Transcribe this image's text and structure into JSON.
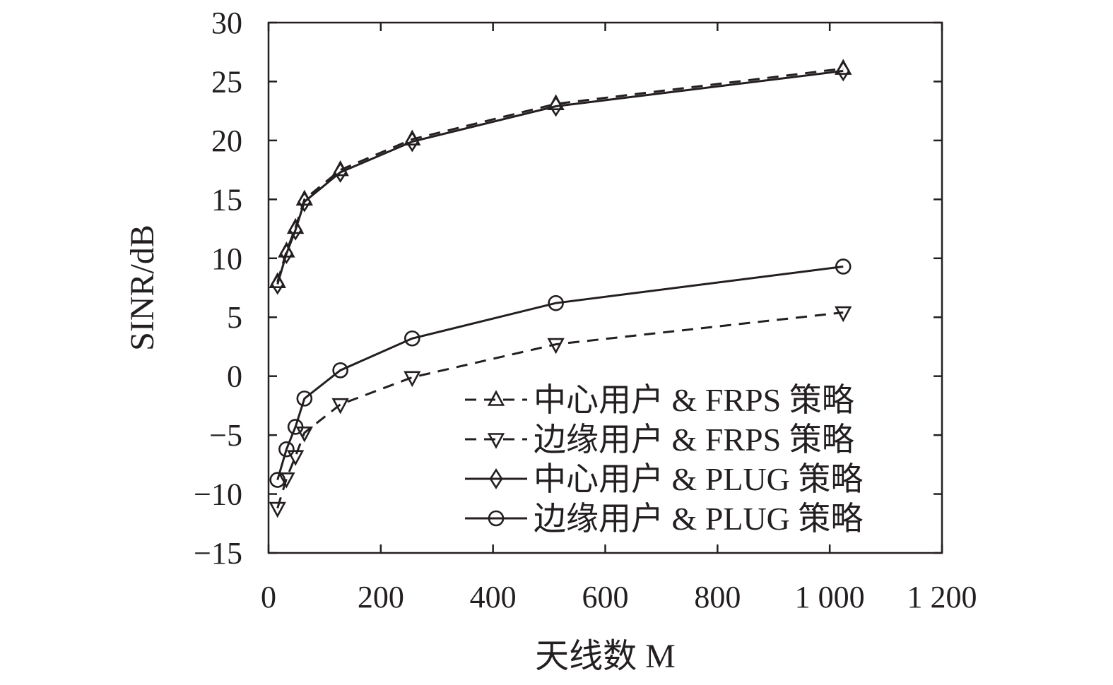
{
  "chart_data": {
    "type": "line",
    "title": "",
    "xlabel": "天线数 M",
    "ylabel": "SINR/dB",
    "xlim": [
      0,
      1200
    ],
    "ylim": [
      -15,
      30
    ],
    "xticks": [
      0,
      200,
      400,
      600,
      800,
      1000,
      1200
    ],
    "xtick_labels": [
      "0",
      "200",
      "400",
      "600",
      "800",
      "1 000",
      "1 200"
    ],
    "yticks": [
      -15,
      -10,
      -5,
      0,
      5,
      10,
      15,
      20,
      25,
      30
    ],
    "ytick_labels": [
      "−15",
      "−10",
      "−5",
      "0",
      "5",
      "10",
      "15",
      "20",
      "25",
      "30"
    ],
    "grid": false,
    "legend_position": "bottom-right",
    "x": [
      16,
      32,
      48,
      64,
      128,
      256,
      512,
      1024
    ],
    "series": [
      {
        "name": "中心用户 & FRPS 策略",
        "values": [
          8.0,
          10.6,
          12.6,
          15.0,
          17.5,
          20.1,
          23.1,
          26.1
        ],
        "marker": "triangle-up",
        "line": "dashed"
      },
      {
        "name": "边缘用户 & FRPS 策略",
        "values": [
          -11.2,
          -8.7,
          -6.8,
          -4.8,
          -2.4,
          -0.1,
          2.7,
          5.4
        ],
        "marker": "triangle-down",
        "line": "dashed"
      },
      {
        "name": "中心用户 & PLUG 策略",
        "values": [
          7.8,
          10.4,
          12.4,
          14.8,
          17.3,
          19.9,
          22.9,
          25.9
        ],
        "marker": "diamond",
        "line": "solid"
      },
      {
        "name": "边缘用户 & PLUG 策略",
        "values": [
          -8.8,
          -6.2,
          -4.3,
          -1.9,
          0.5,
          3.2,
          6.2,
          9.3
        ],
        "marker": "circle",
        "line": "solid"
      }
    ],
    "colors": {
      "ink": "#231f20",
      "background": "#ffffff"
    }
  }
}
